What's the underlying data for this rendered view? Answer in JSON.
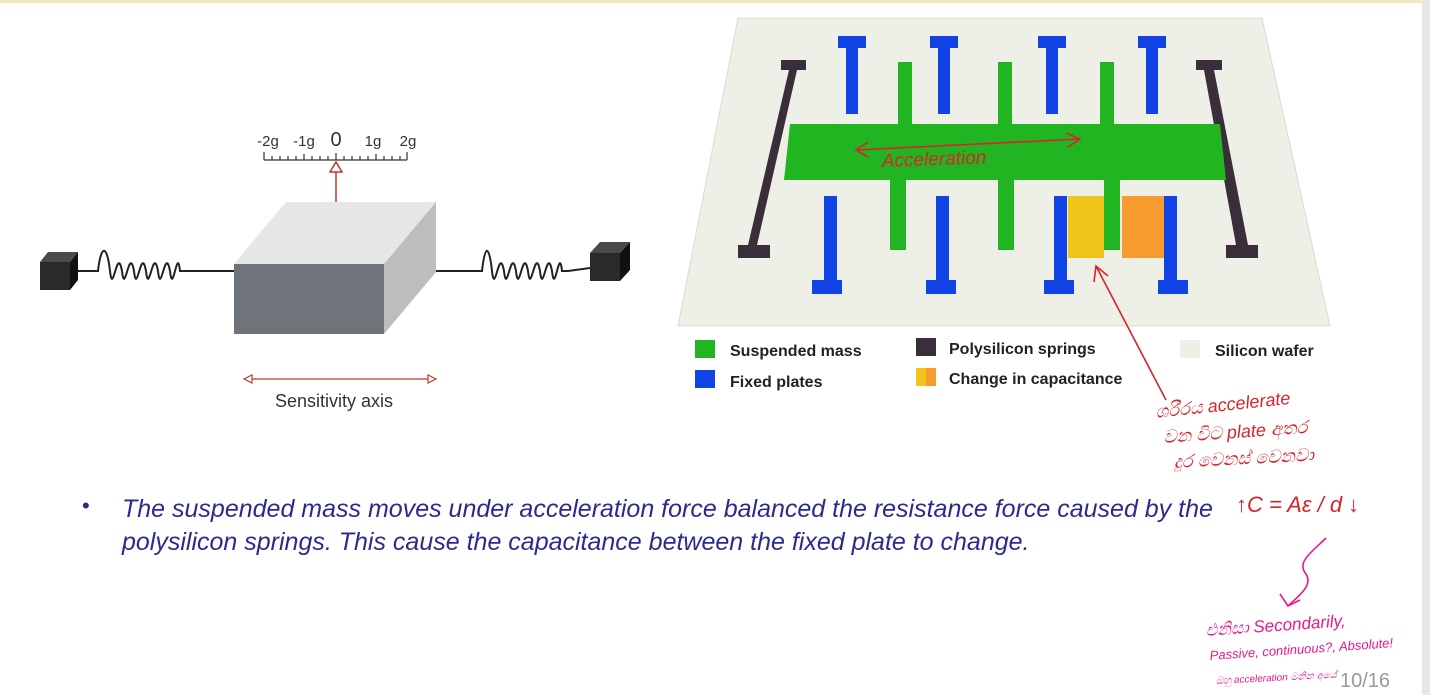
{
  "slide": {
    "page_number": "10/16",
    "bullet": "The suspended mass moves under acceleration force balanced the resistance force caused by the polysilicon springs.  This cause the capacitance between the fixed plate to change."
  },
  "left_figure": {
    "scale_labels": [
      "-2g",
      "-1g",
      "0",
      "1g",
      "2g"
    ],
    "axis_label": "Sensitivity axis"
  },
  "right_figure": {
    "legend": [
      {
        "label": "Suspended mass",
        "color": "#22b522"
      },
      {
        "label": "Polysilicon springs",
        "color": "#3a2e3a"
      },
      {
        "label": "Silicon wafer",
        "color": "#eef0e8"
      },
      {
        "label": "Fixed plates",
        "color": "#1144e6"
      },
      {
        "label": "Change in capacitance",
        "color": "#f5a623"
      }
    ]
  },
  "annotations": {
    "acceleration": "Acceleration",
    "note_line1": "ශරීරය accelerate",
    "note_line2": "වන විට plate අතර",
    "note_line3": "දුර වෙනස් වෙනවා",
    "formula": "↑C = Aε / d ↓",
    "note2_line1": "එනිසා Secondarily,",
    "note2_line2": "Passive, continuous?, Absolute!",
    "note2_line3": "ඔහු acceleration මනින අයේ"
  },
  "colors": {
    "annotation_red": "#d8232a",
    "annotation_magenta": "#e8198c",
    "bullet_text": "#2b2b8f"
  }
}
